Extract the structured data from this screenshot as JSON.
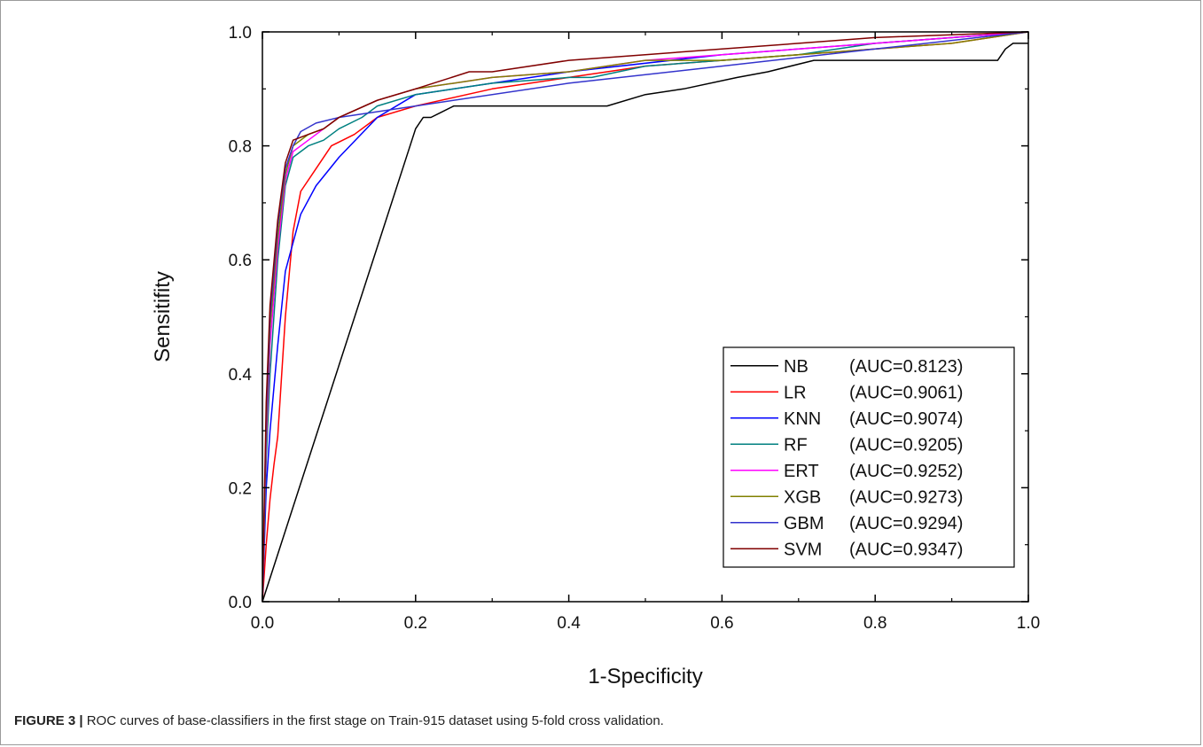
{
  "caption": {
    "label": "FIGURE 3 |",
    "text": " ROC curves of base-classifiers in the first stage on Train-915 dataset using 5-fold cross validation."
  },
  "chart_data": {
    "type": "line",
    "xlabel": "1-Specificity",
    "ylabel": "Sensitifity",
    "xlim": [
      0,
      1
    ],
    "ylim": [
      0,
      1
    ],
    "xticks": [
      "0.0",
      "0.2",
      "0.4",
      "0.6",
      "0.8",
      "1.0"
    ],
    "yticks": [
      "0.0",
      "0.2",
      "0.4",
      "0.6",
      "0.8",
      "1.0"
    ],
    "grid": false,
    "legend_position": "bottom-right",
    "series": [
      {
        "name": "NB",
        "auc": "(AUC=0.8123)",
        "color": "#000000",
        "x": [
          0,
          0.2,
          0.21,
          0.22,
          0.25,
          0.45,
          0.5,
          0.55,
          0.62,
          0.66,
          0.72,
          0.8,
          0.96,
          0.97,
          0.98,
          1.0
        ],
        "y": [
          0,
          0.83,
          0.85,
          0.85,
          0.87,
          0.87,
          0.89,
          0.9,
          0.92,
          0.93,
          0.95,
          0.95,
          0.95,
          0.97,
          0.98,
          0.98
        ]
      },
      {
        "name": "LR",
        "auc": "(AUC=0.9061)",
        "color": "#ff0000",
        "x": [
          0,
          0.005,
          0.01,
          0.015,
          0.02,
          0.03,
          0.04,
          0.05,
          0.07,
          0.09,
          0.12,
          0.15,
          0.2,
          0.3,
          0.4,
          0.5,
          0.6,
          0.7,
          0.8,
          0.9,
          1.0
        ],
        "y": [
          0,
          0.1,
          0.18,
          0.24,
          0.29,
          0.5,
          0.65,
          0.72,
          0.76,
          0.8,
          0.82,
          0.85,
          0.87,
          0.9,
          0.92,
          0.94,
          0.95,
          0.96,
          0.97,
          0.98,
          1.0
        ]
      },
      {
        "name": "KNN",
        "auc": "(AUC=0.9074)",
        "color": "#0000ff",
        "x": [
          0,
          0.005,
          0.01,
          0.02,
          0.03,
          0.05,
          0.07,
          0.1,
          0.15,
          0.2,
          0.3,
          0.4,
          0.6,
          0.8,
          1.0
        ],
        "y": [
          0,
          0.2,
          0.3,
          0.45,
          0.58,
          0.68,
          0.73,
          0.78,
          0.85,
          0.89,
          0.91,
          0.93,
          0.96,
          0.98,
          1.0
        ]
      },
      {
        "name": "RF",
        "auc": "(AUC=0.9205)",
        "color": "#008080",
        "x": [
          0,
          0.005,
          0.01,
          0.02,
          0.03,
          0.04,
          0.06,
          0.08,
          0.1,
          0.13,
          0.15,
          0.2,
          0.3,
          0.4,
          0.43,
          0.5,
          0.6,
          0.7,
          0.8,
          0.9,
          1.0
        ],
        "y": [
          0,
          0.25,
          0.4,
          0.6,
          0.73,
          0.78,
          0.8,
          0.81,
          0.83,
          0.85,
          0.87,
          0.89,
          0.91,
          0.92,
          0.92,
          0.94,
          0.95,
          0.96,
          0.98,
          0.99,
          1.0
        ]
      },
      {
        "name": "ERT",
        "auc": "(AUC=0.9252)",
        "color": "#ff00ff",
        "x": [
          0,
          0.005,
          0.01,
          0.02,
          0.03,
          0.04,
          0.06,
          0.08,
          0.1,
          0.15,
          0.2,
          0.3,
          0.4,
          0.5,
          0.6,
          0.7,
          0.8,
          0.9,
          1.0
        ],
        "y": [
          0,
          0.28,
          0.45,
          0.62,
          0.74,
          0.79,
          0.81,
          0.83,
          0.85,
          0.88,
          0.9,
          0.92,
          0.93,
          0.95,
          0.96,
          0.97,
          0.98,
          0.99,
          1.0
        ]
      },
      {
        "name": "XGB",
        "auc": "(AUC=0.9273)",
        "color": "#808000",
        "x": [
          0,
          0.005,
          0.01,
          0.02,
          0.03,
          0.04,
          0.06,
          0.08,
          0.1,
          0.15,
          0.2,
          0.3,
          0.4,
          0.5,
          0.6,
          0.7,
          0.8,
          0.9,
          1.0
        ],
        "y": [
          0,
          0.3,
          0.48,
          0.64,
          0.75,
          0.8,
          0.82,
          0.83,
          0.85,
          0.88,
          0.9,
          0.92,
          0.93,
          0.95,
          0.95,
          0.96,
          0.97,
          0.98,
          1.0
        ]
      },
      {
        "name": "GBM",
        "auc": "(AUC=0.9294)",
        "color": "#3333cc",
        "x": [
          0,
          0.005,
          0.01,
          0.02,
          0.03,
          0.04,
          0.05,
          0.07,
          0.1,
          0.2,
          0.4,
          0.6,
          0.8,
          1.0
        ],
        "y": [
          0,
          0.32,
          0.5,
          0.66,
          0.76,
          0.8,
          0.825,
          0.84,
          0.85,
          0.87,
          0.91,
          0.94,
          0.97,
          1.0
        ]
      },
      {
        "name": "SVM",
        "auc": "(AUC=0.9347)",
        "color": "#800000",
        "x": [
          0,
          0.005,
          0.01,
          0.02,
          0.03,
          0.04,
          0.06,
          0.08,
          0.1,
          0.15,
          0.2,
          0.27,
          0.3,
          0.4,
          0.5,
          0.6,
          0.7,
          0.8,
          0.9,
          1.0
        ],
        "y": [
          0,
          0.35,
          0.52,
          0.67,
          0.77,
          0.81,
          0.82,
          0.83,
          0.85,
          0.88,
          0.9,
          0.93,
          0.93,
          0.95,
          0.96,
          0.97,
          0.98,
          0.99,
          0.995,
          1.0
        ]
      }
    ]
  }
}
